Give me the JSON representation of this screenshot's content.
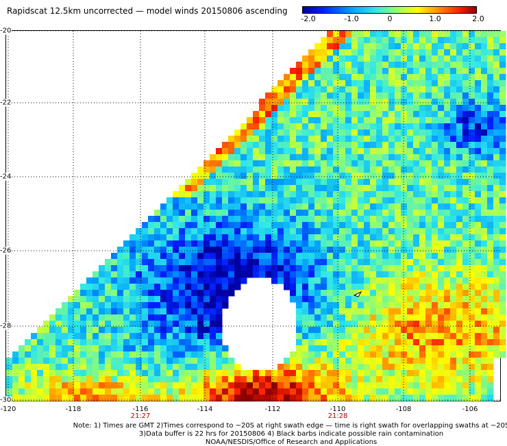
{
  "title": "Rapidscat 12.5km uncorrected — model winds 20150806 ascending",
  "colorbar": {
    "ticks": [
      "-2.0",
      "-1.0",
      "0",
      "1.0",
      "2.0"
    ],
    "colors": [
      "#0000a0",
      "#0020ff",
      "#00a0ff",
      "#30e8e8",
      "#a0ff60",
      "#ffff00",
      "#ff9000",
      "#ff2000",
      "#900000"
    ]
  },
  "axes": {
    "lat_labels": [
      "-20",
      "-22",
      "-24",
      "-26",
      "-28",
      "-30"
    ],
    "lon_labels": [
      "-120",
      "-118",
      "-116",
      "-114",
      "-112",
      "-110",
      "-108",
      "-106"
    ],
    "pass_times": [
      "21:27",
      "21:28"
    ]
  },
  "notes": {
    "line1": "Note: 1) Times are GMT 2)Times correspond to ~20S at right swath edge — time is right swath for overlapping swaths at ~20S",
    "line2": "3)Data buffer is 22 hrs for 20150806 4) Black barbs indicate possible rain contamination",
    "line3": "NOAA/NESDIS/Office of Research and Applications"
  }
}
